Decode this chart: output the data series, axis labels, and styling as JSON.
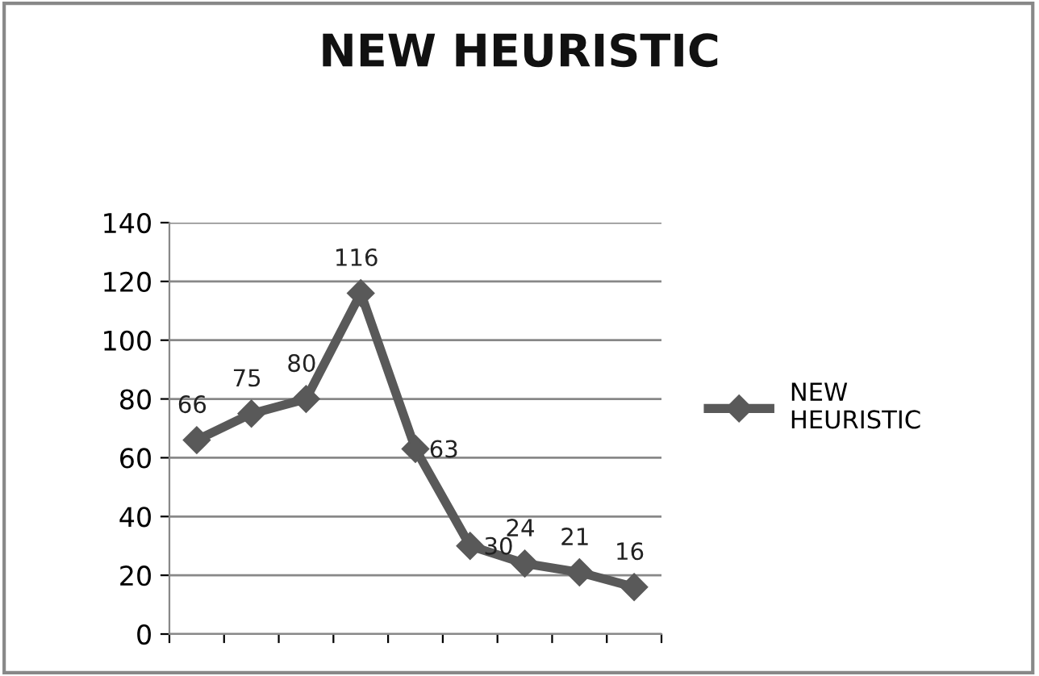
{
  "chart_data": {
    "type": "line",
    "title": "NEW HEURISTIC",
    "categories": [
      null,
      null,
      null,
      null,
      null,
      null,
      null,
      null,
      null
    ],
    "series": [
      {
        "name": "NEW HEURISTIC",
        "color": "#595959",
        "values": [
          66,
          75,
          80,
          116,
          63,
          30,
          24,
          21,
          16
        ]
      }
    ],
    "ylim": [
      0,
      140
    ],
    "yticks": [
      0,
      20,
      40,
      60,
      80,
      100,
      120,
      140
    ],
    "grid": "y",
    "legend": "right",
    "marker": "diamond",
    "line_style": "solid",
    "data_labels": true,
    "tick_labels": "y"
  }
}
